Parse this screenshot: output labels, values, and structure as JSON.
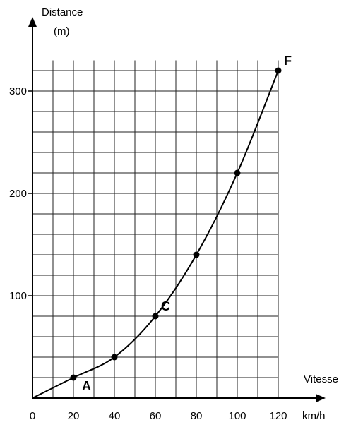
{
  "chart_data": {
    "type": "line",
    "title": "",
    "ylabel_line1": "Distance",
    "ylabel_line2": "(m)",
    "xlabel": "Vitesse",
    "xunit": "km/h",
    "x_ticks": [
      "0",
      "20",
      "40",
      "60",
      "80",
      "100",
      "120"
    ],
    "y_ticks": [
      "100",
      "200",
      "300"
    ],
    "xlim": [
      0,
      130
    ],
    "ylim": [
      0,
      335
    ],
    "grid": true,
    "x_grid_step": 10,
    "y_grid_step": 20,
    "series": [
      {
        "x": [
          0,
          20,
          40,
          60,
          80,
          100,
          120
        ],
        "y": [
          0,
          20,
          40,
          80,
          140,
          220,
          320
        ]
      }
    ],
    "marked_points": [
      {
        "x": 20,
        "y": 20
      },
      {
        "x": 40,
        "y": 40
      },
      {
        "x": 60,
        "y": 80
      },
      {
        "x": 80,
        "y": 140
      },
      {
        "x": 100,
        "y": 220
      },
      {
        "x": 120,
        "y": 320
      }
    ],
    "point_labels": [
      {
        "text": "A",
        "x": 20,
        "y": 20
      },
      {
        "text": "C",
        "x": 60,
        "y": 80
      },
      {
        "text": "F",
        "x": 120,
        "y": 320
      }
    ],
    "colors": {
      "line": "#000000",
      "grid": "#222222",
      "background": "#ffffff"
    }
  }
}
